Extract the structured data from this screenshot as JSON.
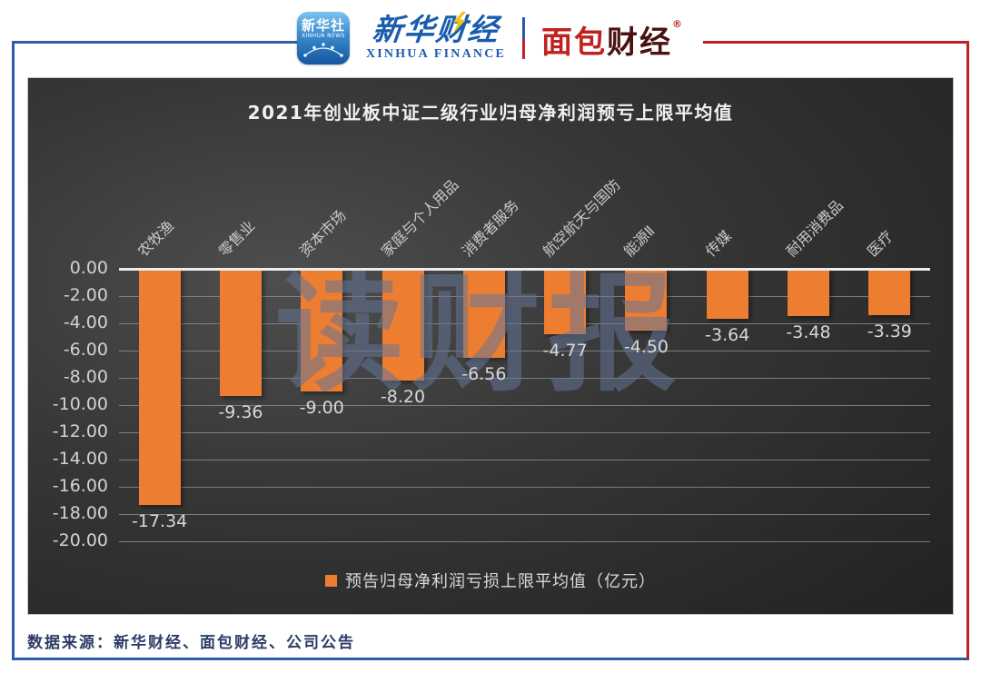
{
  "header": {
    "xinhua_icon": {
      "cn": "新华社",
      "en": "XINHUA NEWS"
    },
    "xinhua_finance": {
      "cn": "新华财经",
      "en": "XINHUA FINANCE"
    },
    "mianbao_finance": {
      "part1": "面包",
      "part2": "财经",
      "reg": "®"
    }
  },
  "chart_data": {
    "type": "bar",
    "title": "2021年创业板中证二级行业归母净利润预亏上限平均值",
    "categories": [
      "农牧渔",
      "零售业",
      "资本市场",
      "家庭与个人用品",
      "消费者服务",
      "航空航天与国防",
      "能源Ⅱ",
      "传媒",
      "耐用消费品",
      "医疗"
    ],
    "values": [
      -17.34,
      -9.36,
      -9.0,
      -8.2,
      -6.56,
      -4.77,
      -4.5,
      -3.64,
      -3.48,
      -3.39
    ],
    "value_labels": [
      "-17.34",
      "-9.36",
      "-9.00",
      "-8.20",
      "-6.56",
      "-4.77",
      "-4.50",
      "-3.64",
      "-3.48",
      "-3.39"
    ],
    "ylim": [
      -20,
      0
    ],
    "ytick_step": 2,
    "yticks": [
      "0.00",
      "-2.00",
      "-4.00",
      "-6.00",
      "-8.00",
      "-10.00",
      "-12.00",
      "-14.00",
      "-16.00",
      "-18.00",
      "-20.00"
    ],
    "legend": "预告归母净利润亏损上限平均值（亿元）",
    "legend_position": "bottom",
    "grid": true,
    "bar_color": "#ED7D31",
    "watermark": "读财报"
  },
  "footer": {
    "source": "数据来源：新华财经、面包财经、公司公告"
  },
  "colors": {
    "bar": "#ED7D31",
    "chart_background": "#333333",
    "frame_blue": "#2F5DA8",
    "frame_red": "#C01D25",
    "axis_text": "#D2D2D2",
    "watermark": "#647494",
    "source_text": "#2D3C66",
    "logo_blue": "#1A5CAD",
    "logo_red": "#C0201E"
  }
}
